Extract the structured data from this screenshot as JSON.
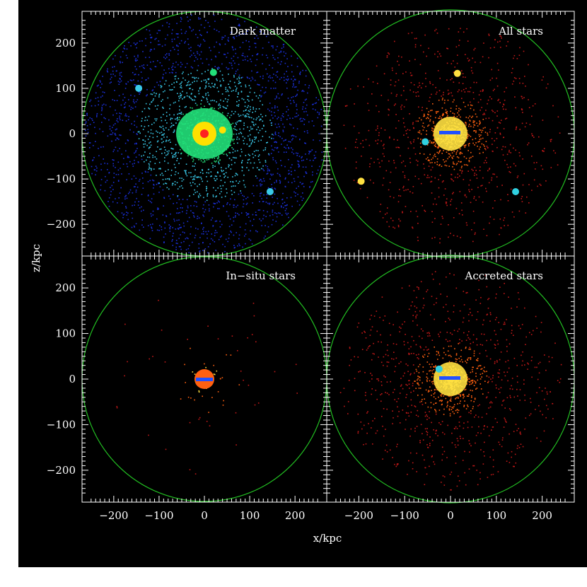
{
  "figure": {
    "background": "#000000",
    "frame_color": "#ffffff",
    "circle_color": "#22c022",
    "x_axis_label": "x/kpc",
    "y_axis_label": "z/kpc"
  },
  "axes": {
    "range": [
      -270,
      270
    ],
    "ticks": [
      -200,
      -100,
      0,
      100,
      200
    ],
    "x_tick_labels": [
      "−200",
      "−100",
      "0",
      "100",
      "200"
    ],
    "y_tick_labels": [
      "−200",
      "−100",
      "0",
      "100",
      "200"
    ],
    "circle_radius_kpc": 270
  },
  "panels": [
    {
      "id": "dark-matter",
      "title": "Dark matter",
      "colormap": "dm"
    },
    {
      "id": "all-stars",
      "title": "All stars",
      "colormap": "stars"
    },
    {
      "id": "in-situ-stars",
      "title": "In−situ stars",
      "colormap": "stars"
    },
    {
      "id": "accreted-stars",
      "title": "Accreted stars",
      "colormap": "stars"
    }
  ],
  "colors": {
    "dm_outer": "#1a2fd6",
    "dm_mid": "#39c9e8",
    "dm_inner": "#22e07a",
    "core_yellow": "#ffe000",
    "core_red": "#ff2020",
    "stars_outer": "#c01818",
    "stars_mid": "#ff6010",
    "stars_inner": "#ffe040",
    "stars_blue": "#2050ff",
    "stars_cyan": "#30d0e0"
  }
}
